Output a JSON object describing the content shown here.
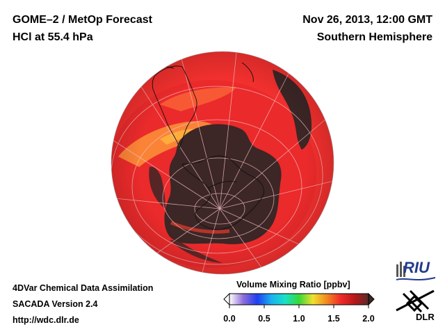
{
  "header": {
    "product": "GOME–2 / MetOp Forecast",
    "parameter": "HCl at 55.4 hPa",
    "datetime": "Nov 26, 2013, 12:00 GMT",
    "region": "Southern Hemisphere"
  },
  "footer": {
    "line1": "4DVar Chemical Data Assimilation",
    "line2": "SACADA Version 2.4",
    "line3": "http://wdc.dlr.de"
  },
  "colorbar": {
    "title": "Volume Mixing Ratio [ppbv]",
    "ticks": [
      "0.0",
      "0.5",
      "1.0",
      "1.5",
      "2.0"
    ],
    "range": [
      0.0,
      2.0
    ],
    "stops": [
      "#ffffff",
      "#8e6cd8",
      "#1f3ff0",
      "#1ab0f0",
      "#19e0c8",
      "#38d838",
      "#f0e030",
      "#f08a20",
      "#f02a2a",
      "#b81818",
      "#5a2a2a"
    ]
  },
  "logos": {
    "riu": "RIU",
    "dlr": "DLR"
  },
  "map_legend": {
    "high_color": "#3c2626",
    "ocean_base": "#f2302e",
    "peak_color": "#ff9a3a"
  }
}
